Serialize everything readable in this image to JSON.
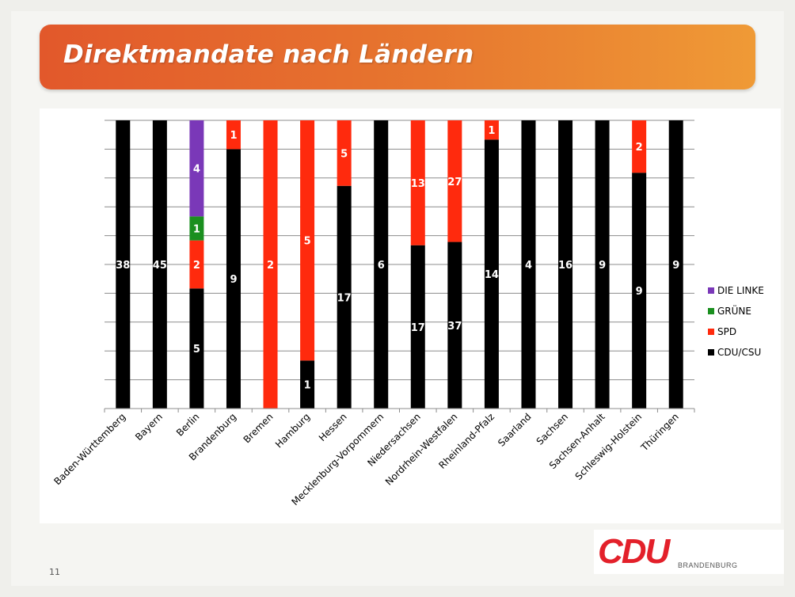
{
  "title": "Direktmandate nach Ländern",
  "page_number": "11",
  "logo": {
    "text": "CDU",
    "subtext": "BRANDENBURG"
  },
  "colors": {
    "CDU/CSU": "#000000",
    "SPD": "#ff2a0d",
    "GRÜNE": "#1a8f1f",
    "DIE LINKE": "#7a38b8"
  },
  "chart_data": {
    "type": "bar",
    "stacked": true,
    "normalized": true,
    "categories": [
      "Baden-Württemberg",
      "Bayern",
      "Berlin",
      "Brandenburg",
      "Bremen",
      "Hamburg",
      "Hessen",
      "Mecklenburg-Vorpommern",
      "Niedersachsen",
      "Nordrhein-Westfalen",
      "Rheinland-Pfalz",
      "Saarland",
      "Sachsen",
      "Sachsen-Anhalt",
      "Schleswig-Holstein",
      "Thüringen"
    ],
    "series": [
      {
        "name": "CDU/CSU",
        "values": [
          38,
          45,
          5,
          9,
          0,
          1,
          17,
          6,
          17,
          37,
          14,
          4,
          16,
          9,
          9,
          9
        ]
      },
      {
        "name": "SPD",
        "values": [
          0,
          0,
          2,
          1,
          2,
          5,
          5,
          0,
          13,
          27,
          1,
          0,
          0,
          0,
          2,
          0
        ]
      },
      {
        "name": "GRÜNE",
        "values": [
          0,
          0,
          1,
          0,
          0,
          0,
          0,
          0,
          0,
          0,
          0,
          0,
          0,
          0,
          0,
          0
        ]
      },
      {
        "name": "DIE LINKE",
        "values": [
          0,
          0,
          4,
          0,
          0,
          0,
          0,
          0,
          0,
          0,
          0,
          0,
          0,
          0,
          0,
          0
        ]
      }
    ],
    "legend_position": "right",
    "grid": true,
    "ylim": [
      0,
      1
    ]
  }
}
